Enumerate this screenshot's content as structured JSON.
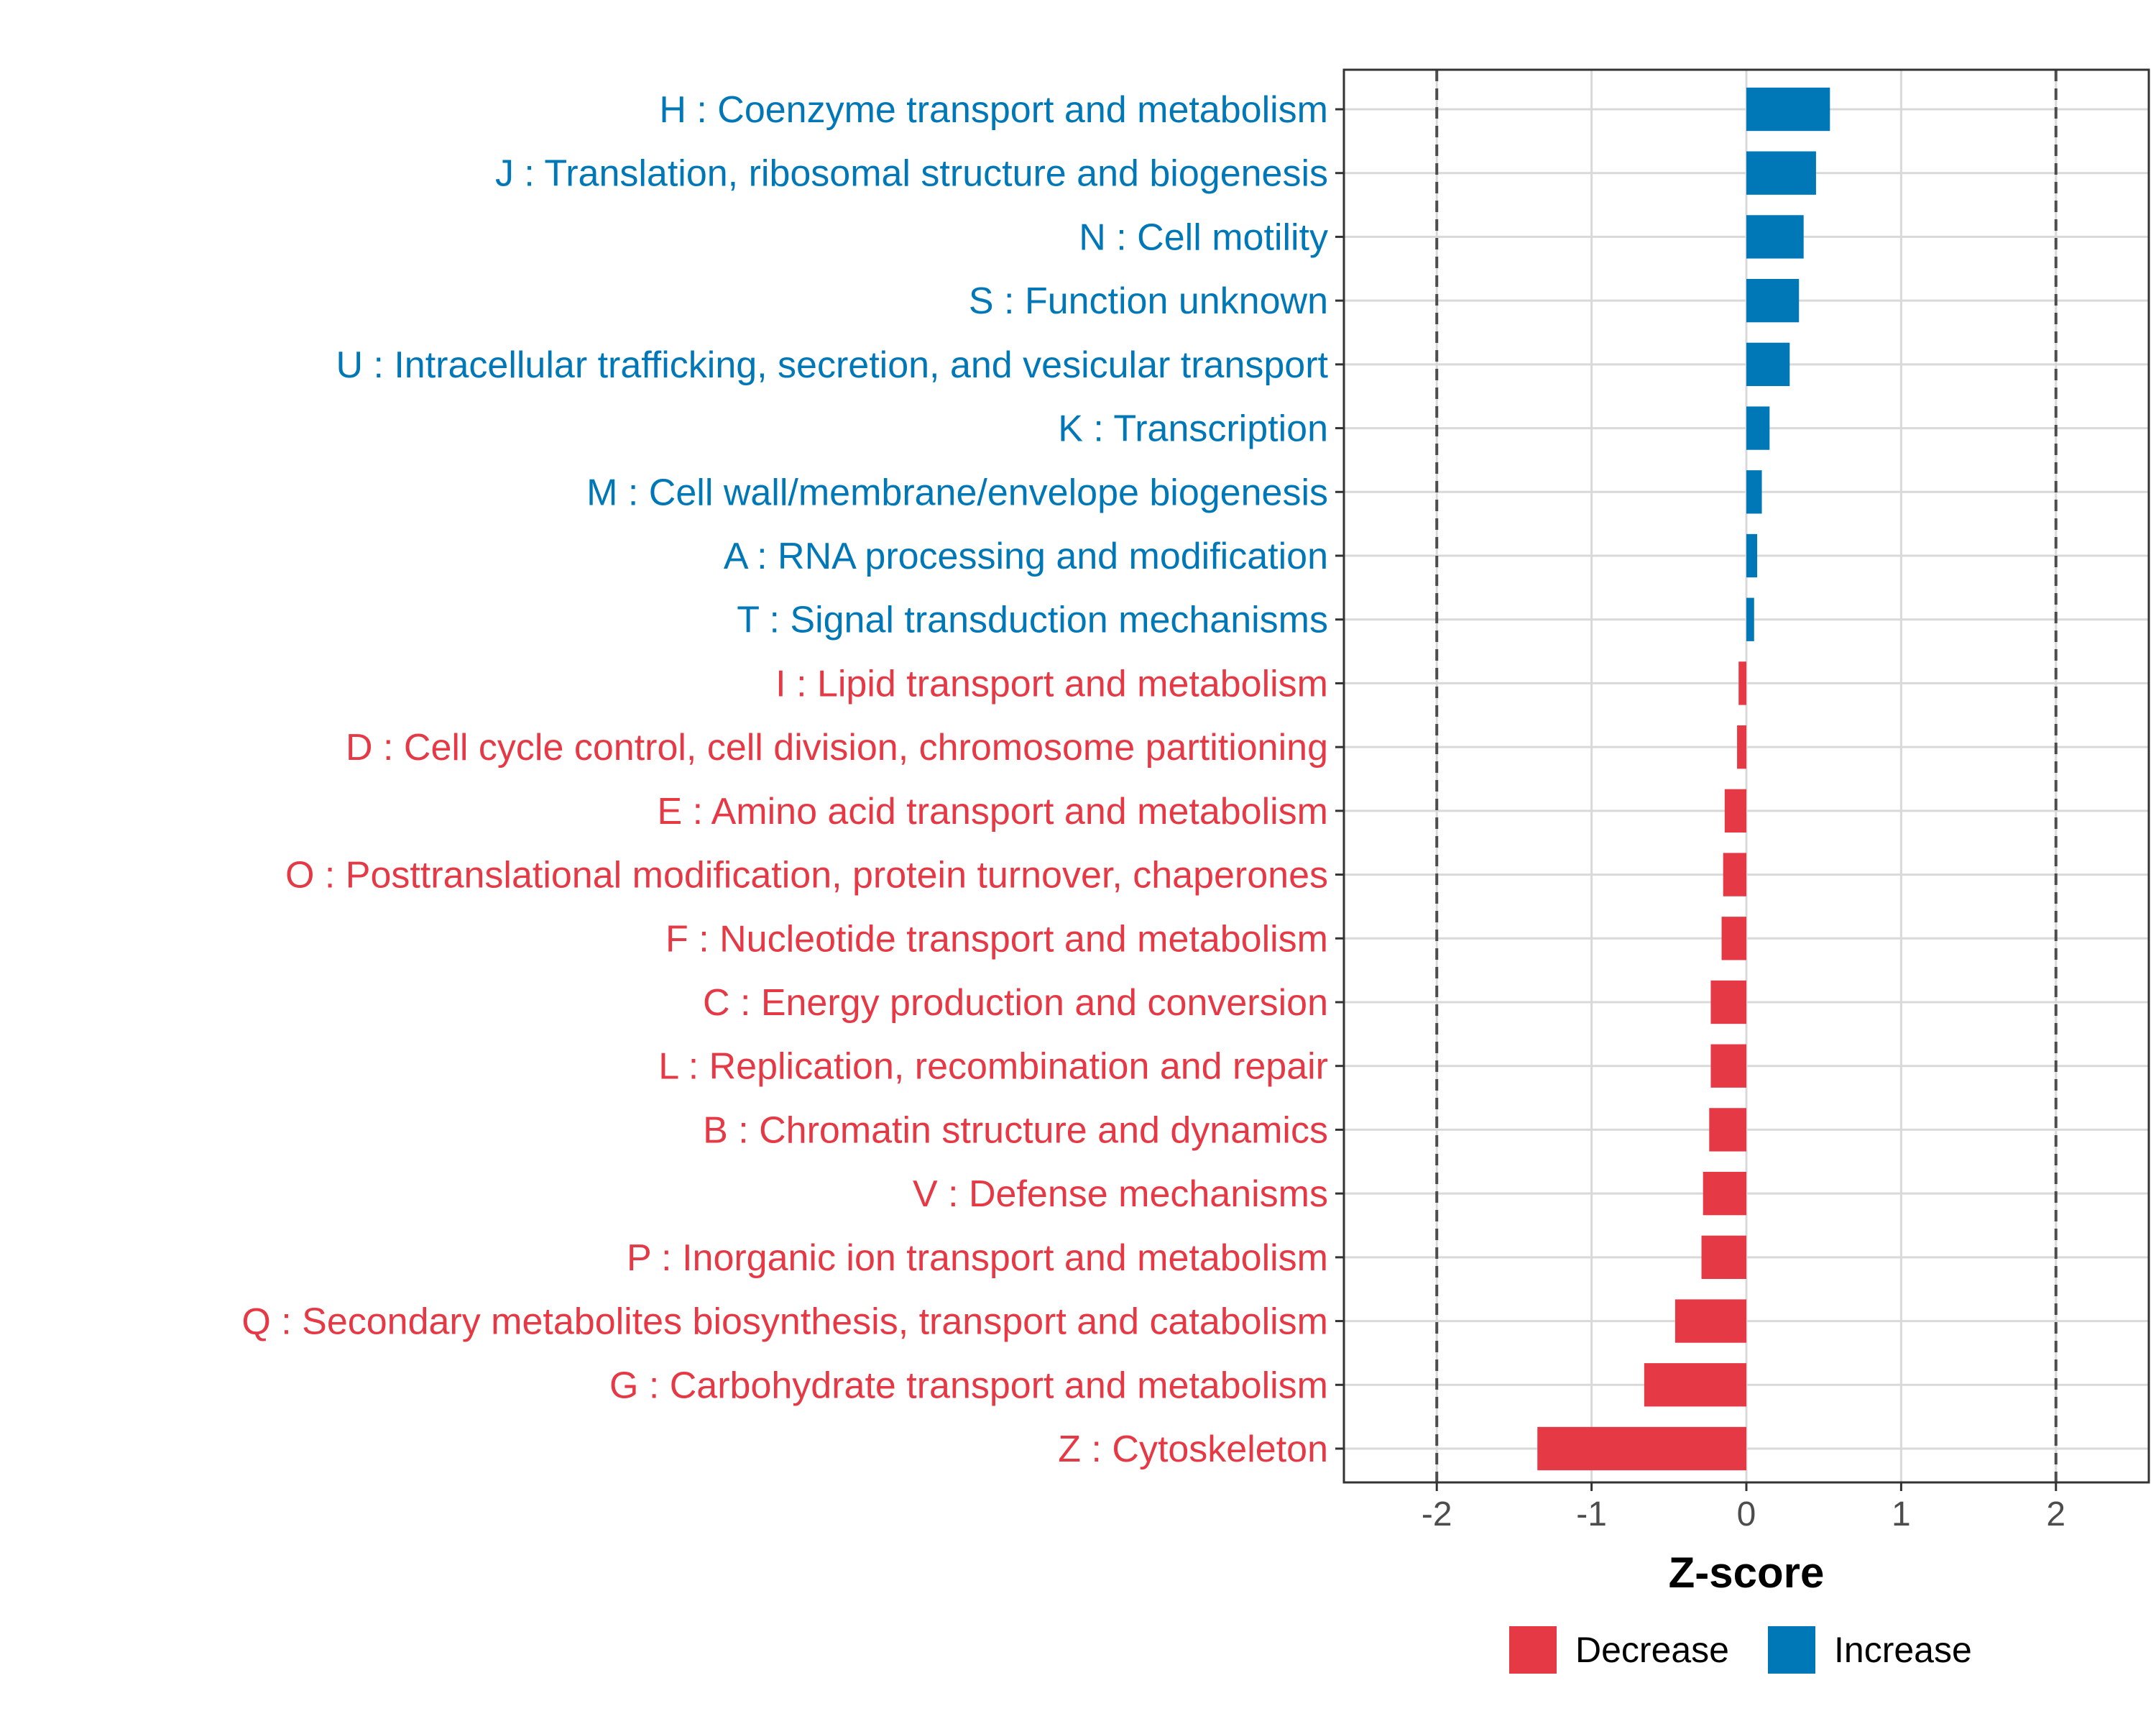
{
  "chart_data": {
    "type": "bar",
    "orientation": "horizontal",
    "title": "",
    "xlabel": "Z-score",
    "ylabel": "",
    "xlim": [
      -2.6,
      2.6
    ],
    "xticks": [
      -2,
      -1,
      0,
      1,
      2
    ],
    "xtick_labels": [
      "-2",
      "-1",
      "0",
      "1",
      "2"
    ],
    "reference_lines": [
      -2,
      2
    ],
    "grid": true,
    "legend_position": "bottom",
    "colors": {
      "Decrease": "#E63946",
      "Increase": "#0077B6",
      "axis_text": "#4d4d4d",
      "grid": "#d9d9d9",
      "reference_line": "#4d4d4d"
    },
    "legend": [
      {
        "label": "Decrease",
        "color": "#E63946"
      },
      {
        "label": "Increase",
        "color": "#0077B6"
      }
    ],
    "categories": [
      "H : Coenzyme transport and metabolism",
      "J : Translation, ribosomal structure and biogenesis",
      "N : Cell motility",
      "S : Function unknown",
      "U : Intracellular trafficking, secretion, and vesicular transport",
      "K : Transcription",
      "M : Cell wall/membrane/envelope biogenesis",
      "A : RNA processing and modification",
      "T : Signal transduction mechanisms",
      "I : Lipid transport and metabolism",
      "D : Cell cycle control, cell division, chromosome partitioning",
      "E : Amino acid transport and metabolism",
      "O : Posttranslational modification, protein turnover, chaperones",
      "F : Nucleotide transport and metabolism",
      "C : Energy production and conversion",
      "L : Replication, recombination and repair",
      "B : Chromatin structure and dynamics",
      "V : Defense mechanisms",
      "P : Inorganic ion transport and metabolism",
      "Q : Secondary metabolites biosynthesis, transport and catabolism",
      "G : Carbohydrate transport and metabolism",
      "Z : Cytoskeleton"
    ],
    "values": [
      0.54,
      0.45,
      0.37,
      0.34,
      0.28,
      0.15,
      0.1,
      0.07,
      0.05,
      -0.05,
      -0.06,
      -0.14,
      -0.15,
      -0.16,
      -0.23,
      -0.23,
      -0.24,
      -0.28,
      -0.29,
      -0.46,
      -0.66,
      -1.35
    ],
    "groups": [
      "Increase",
      "Increase",
      "Increase",
      "Increase",
      "Increase",
      "Increase",
      "Increase",
      "Increase",
      "Increase",
      "Decrease",
      "Decrease",
      "Decrease",
      "Decrease",
      "Decrease",
      "Decrease",
      "Decrease",
      "Decrease",
      "Decrease",
      "Decrease",
      "Decrease",
      "Decrease",
      "Decrease"
    ]
  }
}
